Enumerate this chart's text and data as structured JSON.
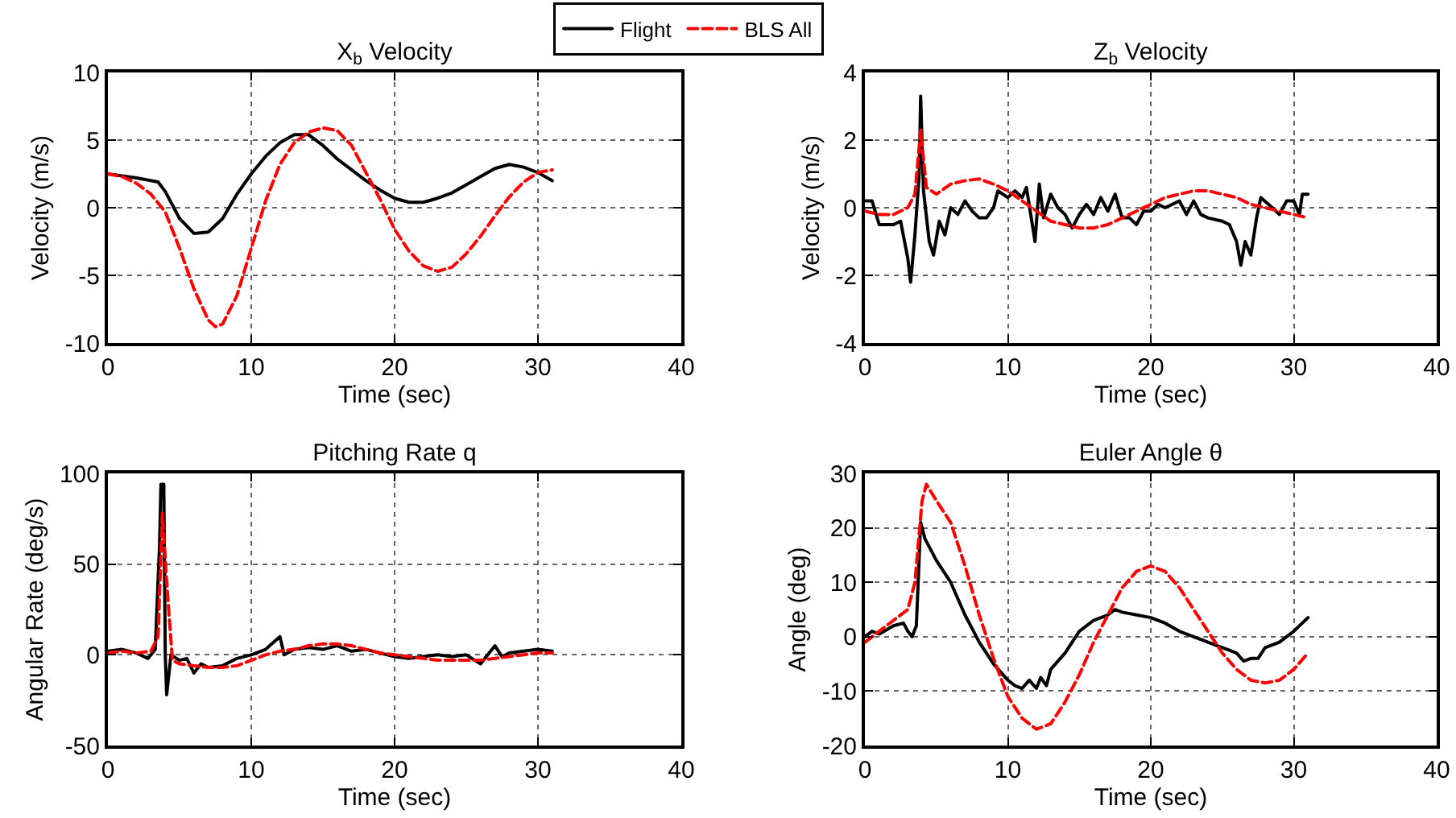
{
  "chart_data": [
    {
      "type": "line",
      "title": "X$_{b}$ Velocity",
      "xlabel": "Time (sec)",
      "ylabel": "Velocity (m/s)",
      "xlim": [
        0,
        40
      ],
      "xticks": [
        0,
        10,
        20,
        30,
        40
      ],
      "ylim": [
        -10,
        10
      ],
      "yticks": [
        -10,
        -5,
        0,
        5,
        10
      ],
      "grid": true,
      "legend": "top",
      "series": [
        {
          "name": "Flight",
          "color": "#000000",
          "line_style": "solid",
          "x": [
            0,
            2,
            3.5,
            4,
            5,
            6,
            7,
            8,
            9,
            10,
            11,
            12,
            13,
            14,
            15,
            16,
            17,
            18,
            19,
            20,
            21,
            22,
            23,
            24,
            25,
            26,
            27,
            28,
            29,
            30,
            31
          ],
          "values": [
            2.5,
            2.2,
            1.9,
            1.2,
            -0.8,
            -1.9,
            -1.8,
            -0.8,
            1,
            2.5,
            3.8,
            4.8,
            5.4,
            5.4,
            4.6,
            3.6,
            2.8,
            2,
            1.3,
            0.7,
            0.4,
            0.4,
            0.7,
            1.1,
            1.7,
            2.3,
            2.9,
            3.2,
            3,
            2.6,
            2
          ]
        },
        {
          "name": "BLS All",
          "color": "#ff0000",
          "line_style": "dashed",
          "x": [
            0,
            1,
            2,
            3,
            4,
            5,
            6,
            7,
            7.5,
            8,
            9,
            10,
            11,
            12,
            13,
            14,
            15,
            16,
            17,
            18,
            19,
            20,
            21,
            22,
            23,
            24,
            25,
            26,
            27,
            28,
            29,
            30,
            31
          ],
          "values": [
            2.5,
            2.3,
            1.8,
            1,
            -0.3,
            -3,
            -6,
            -8.3,
            -8.8,
            -8.6,
            -6.5,
            -3,
            0.5,
            3.2,
            4.8,
            5.6,
            5.9,
            5.7,
            4.6,
            2.6,
            0.6,
            -1.6,
            -3.2,
            -4.3,
            -4.7,
            -4.4,
            -3.4,
            -2.1,
            -0.6,
            0.8,
            1.9,
            2.6,
            2.8
          ]
        }
      ]
    },
    {
      "type": "line",
      "title": "Z$_{b}$ Velocity",
      "xlabel": "Time (sec)",
      "ylabel": "Velocity (m/s)",
      "xlim": [
        0,
        40
      ],
      "xticks": [
        0,
        10,
        20,
        30,
        40
      ],
      "ylim": [
        -4,
        4
      ],
      "yticks": [
        -4,
        -2,
        0,
        2,
        4
      ],
      "grid": true,
      "series": [
        {
          "color": "#000000",
          "line_style": "solid",
          "x": [
            0,
            0.5,
            1,
            2,
            2.5,
            3,
            3.2,
            3.5,
            3.8,
            3.9,
            4.1,
            4.5,
            4.8,
            5.2,
            5.6,
            6,
            6.5,
            7,
            7.5,
            8,
            8.5,
            9,
            9.3,
            10,
            10.5,
            11,
            11.3,
            11.6,
            11.9,
            12.2,
            12.5,
            13,
            13.5,
            14,
            14.5,
            15,
            15.5,
            16,
            16.5,
            17,
            17.5,
            18,
            18.5,
            19,
            19.5,
            20,
            20.5,
            21,
            22,
            22.5,
            23,
            23.5,
            24,
            25,
            25.5,
            26,
            26.3,
            26.6,
            27,
            27.4,
            27.7,
            28.5,
            29,
            29.5,
            30,
            30.4,
            30.6,
            31
          ],
          "values": [
            0.2,
            0.2,
            -0.5,
            -0.5,
            -0.4,
            -1.5,
            -2.2,
            -0.8,
            1,
            3.3,
            0.5,
            -1,
            -1.4,
            -0.4,
            -0.8,
            0,
            -0.2,
            0.2,
            -0.1,
            -0.3,
            -0.3,
            0,
            0.5,
            0.3,
            0.5,
            0.3,
            0.6,
            -0.2,
            -1,
            0.7,
            -0.3,
            0.4,
            0,
            -0.2,
            -0.6,
            -0.2,
            0.1,
            -0.2,
            0.3,
            -0.1,
            0.4,
            -0.3,
            -0.3,
            -0.5,
            -0.1,
            -0.1,
            0.1,
            0,
            0.2,
            -0.2,
            0.2,
            -0.2,
            -0.3,
            -0.4,
            -0.5,
            -1,
            -1.7,
            -1,
            -1.4,
            -0.3,
            0.3,
            0,
            -0.2,
            0.2,
            0.2,
            -0.2,
            0.4,
            0.4
          ]
        },
        {
          "color": "#ff0000",
          "line_style": "dashed",
          "x": [
            0,
            1,
            2,
            3,
            3.5,
            3.9,
            4.3,
            5,
            6,
            7,
            8,
            9,
            10,
            11,
            12,
            13,
            14,
            15,
            16,
            17,
            18,
            19,
            20,
            21,
            22,
            23,
            24,
            25,
            26,
            27,
            28,
            29,
            30,
            31
          ],
          "values": [
            -0.1,
            -0.2,
            -0.2,
            0,
            0.4,
            2.3,
            0.6,
            0.4,
            0.7,
            0.8,
            0.85,
            0.7,
            0.5,
            0.2,
            -0.1,
            -0.4,
            -0.5,
            -0.6,
            -0.6,
            -0.5,
            -0.3,
            -0.1,
            0.1,
            0.3,
            0.4,
            0.5,
            0.5,
            0.4,
            0.3,
            0.1,
            0,
            -0.1,
            -0.2,
            -0.3
          ]
        }
      ]
    },
    {
      "type": "line",
      "title": "Pitching Rate q",
      "xlabel": "Time (sec)",
      "ylabel": "Angular Rate (deg/s)",
      "xlim": [
        0,
        40
      ],
      "xticks": [
        0,
        10,
        20,
        30,
        40
      ],
      "ylim": [
        -50,
        100
      ],
      "yticks": [
        -50,
        0,
        50,
        100
      ],
      "grid": true,
      "series": [
        {
          "color": "#000000",
          "line_style": "solid",
          "x": [
            0,
            1,
            2,
            2.8,
            3.3,
            3.6,
            3.7,
            3.9,
            4,
            4.1,
            4.4,
            5,
            5.5,
            6,
            6.5,
            7,
            8,
            9,
            10,
            11,
            12,
            12.3,
            13,
            14,
            15,
            16,
            17,
            18,
            19,
            20,
            21,
            22,
            23,
            24,
            25,
            26,
            27,
            27.5,
            28,
            29,
            30,
            31
          ],
          "values": [
            2,
            3,
            1,
            -2,
            3,
            60,
            94,
            94,
            0,
            -22,
            0,
            -3,
            -2,
            -10,
            -5,
            -7,
            -6,
            -2,
            0,
            3,
            10,
            0,
            3,
            4,
            3,
            5,
            2,
            3,
            1,
            -1,
            -2,
            -1,
            0,
            -1,
            0,
            -5,
            5,
            -1,
            1,
            2,
            3,
            2
          ]
        },
        {
          "color": "#ff0000",
          "line_style": "dashed",
          "x": [
            0,
            1,
            2,
            3,
            3.5,
            3.8,
            4.1,
            4.5,
            5,
            6,
            7,
            8,
            9,
            10,
            11,
            12,
            13,
            14,
            15,
            16,
            17,
            18,
            19,
            20,
            21,
            22,
            23,
            24,
            25,
            26,
            27,
            28,
            29,
            30,
            31
          ],
          "values": [
            1,
            2,
            1,
            2,
            10,
            78,
            40,
            -3,
            -5,
            -6,
            -7,
            -7,
            -6,
            -3,
            0,
            2,
            3,
            5,
            6,
            6,
            5,
            3,
            1,
            0,
            -1,
            -2,
            -3,
            -3,
            -3,
            -3,
            -2,
            -1,
            0,
            1,
            1
          ]
        }
      ]
    },
    {
      "type": "line",
      "title": "Euler Angle θ",
      "xlabel": "Time (sec)",
      "ylabel": "Angle (deg)",
      "xlim": [
        0,
        40
      ],
      "xticks": [
        0,
        10,
        20,
        30,
        40
      ],
      "ylim": [
        -20,
        30
      ],
      "yticks": [
        -20,
        -10,
        0,
        10,
        20,
        30
      ],
      "grid": true,
      "series": [
        {
          "color": "#000000",
          "line_style": "solid",
          "x": [
            0,
            0.5,
            1,
            2,
            2.7,
            3,
            3.3,
            3.6,
            3.9,
            4.2,
            5,
            6,
            7,
            8,
            9,
            10,
            10.5,
            11,
            11.5,
            12,
            12.3,
            12.7,
            13,
            14,
            15,
            16,
            17,
            17.5,
            18,
            19,
            20,
            21,
            22,
            23,
            24,
            25,
            26,
            26.5,
            27,
            27.5,
            28,
            29,
            30,
            31
          ],
          "values": [
            0,
            1,
            0.5,
            2,
            2.5,
            1,
            0,
            2,
            21,
            18,
            14,
            10,
            4,
            -1,
            -5,
            -8,
            -9,
            -9.5,
            -8,
            -9.5,
            -7.5,
            -9,
            -6,
            -3,
            1,
            3,
            4,
            5,
            4.5,
            4,
            3.5,
            2.5,
            1,
            0,
            -1,
            -2,
            -3,
            -4.5,
            -4,
            -4,
            -2,
            -1,
            1,
            3.5
          ]
        },
        {
          "color": "#ff0000",
          "line_style": "dashed",
          "x": [
            0,
            1,
            2,
            3,
            3.5,
            4,
            4.3,
            5,
            6,
            7,
            8,
            9,
            10,
            11,
            12,
            13,
            14,
            15,
            16,
            17,
            18,
            19,
            20,
            21,
            22,
            23,
            24,
            25,
            26,
            27,
            28,
            29,
            30,
            31
          ],
          "values": [
            -1,
            1,
            3,
            5,
            10,
            25,
            28,
            25,
            21,
            13,
            4,
            -4,
            -11,
            -15,
            -17,
            -16,
            -12,
            -7,
            -1,
            4,
            9,
            12,
            13,
            12,
            9,
            5,
            1,
            -3,
            -6,
            -8,
            -8.5,
            -8,
            -6,
            -3
          ]
        }
      ]
    }
  ]
}
